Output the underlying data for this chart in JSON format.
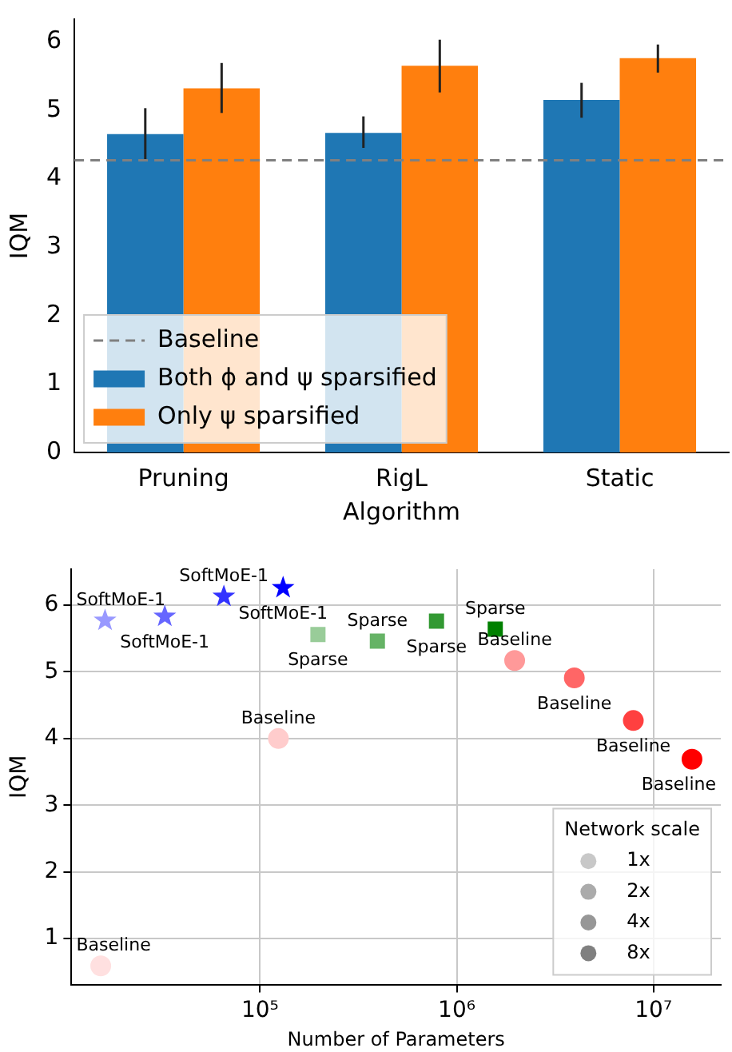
{
  "chart_data": [
    {
      "type": "bar",
      "xlabel": "Algorithm",
      "ylabel": "IQM",
      "categories": [
        "Pruning",
        "RigL",
        "Static"
      ],
      "series": [
        {
          "name": "Both ϕ and ψ sparsified",
          "color": "#1f77b4",
          "values": [
            4.65,
            4.67,
            5.15
          ],
          "errors": [
            [
              4.28,
              5.03
            ],
            [
              4.45,
              4.91
            ],
            [
              4.89,
              5.4
            ]
          ]
        },
        {
          "name": "Only ψ sparsified",
          "color": "#ff7f0e",
          "values": [
            5.32,
            5.65,
            5.76
          ],
          "errors": [
            [
              4.96,
              5.69
            ],
            [
              5.26,
              6.03
            ],
            [
              5.55,
              5.96
            ]
          ]
        }
      ],
      "ylim": [
        0,
        6.33
      ],
      "yticks": [
        0,
        1,
        2,
        3,
        4,
        5,
        6
      ],
      "ref_lines": [
        {
          "axis": "y",
          "value": 4.27,
          "label": "Baseline",
          "color": "#808080",
          "line_style": "dashed"
        }
      ],
      "legend": "bottom left",
      "grid": false
    },
    {
      "type": "scatter",
      "xlabel": "Number of Parameters",
      "ylabel": "IQM",
      "log": "x",
      "grid": true,
      "legend": "bottom right",
      "legend_title": "Network scale",
      "xlim": [
        11000,
        22000000
      ],
      "xticks": [
        {
          "value": 100000,
          "label": "10⁵"
        },
        {
          "value": 1000000,
          "label": "10⁶"
        },
        {
          "value": 10000000,
          "label": "10⁷"
        }
      ],
      "ylim": [
        0.31,
        6.54
      ],
      "yticks": [
        1,
        2,
        3,
        4,
        5,
        6
      ],
      "series": [
        {
          "name": "SoftMoE-1",
          "marker": "star",
          "x": [
            16300,
            32800,
            65500,
            131000
          ],
          "values": [
            5.77,
            5.83,
            6.13,
            6.26
          ],
          "colors": [
            "#9999ff",
            "#6666ff",
            "#3333ff",
            "#0000ff"
          ]
        },
        {
          "name": "Sparse",
          "marker": "square",
          "x": [
            197000,
            395000,
            789000,
            1570000
          ],
          "values": [
            5.56,
            5.46,
            5.76,
            5.64
          ],
          "colors": [
            "#99cc99",
            "#66b366",
            "#339933",
            "#008000"
          ]
        },
        {
          "name": "Baseline",
          "marker": "circle",
          "x": [
            15500,
            124000,
            1970000,
            3960000,
            7900000,
            15700000
          ],
          "values": [
            0.59,
            4.0,
            5.17,
            4.91,
            4.27,
            3.69
          ],
          "colors": [
            "#ffe0e0",
            "#ffcccc",
            "#ff9999",
            "#ff6666",
            "#ff4040",
            "#ff0000"
          ]
        },
        {
          "name": "1x",
          "marker": "circle",
          "color": "#c8c8c8"
        },
        {
          "name": "2x",
          "marker": "circle",
          "color": "#ababab"
        },
        {
          "name": "4x",
          "marker": "circle",
          "color": "#979797"
        },
        {
          "name": "8x",
          "marker": "circle",
          "color": "#808080"
        }
      ]
    }
  ]
}
